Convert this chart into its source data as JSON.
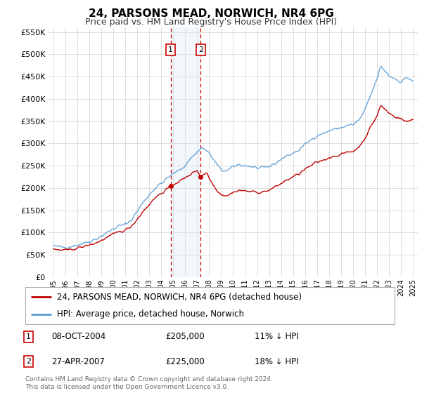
{
  "title": "24, PARSONS MEAD, NORWICH, NR4 6PG",
  "subtitle": "Price paid vs. HM Land Registry's House Price Index (HPI)",
  "legend_line1": "24, PARSONS MEAD, NORWICH, NR4 6PG (detached house)",
  "legend_line2": "HPI: Average price, detached house, Norwich",
  "transaction1_date": "08-OCT-2004",
  "transaction1_price": 205000,
  "transaction1_pct": "11% ↓ HPI",
  "transaction2_date": "27-APR-2007",
  "transaction2_price": 225000,
  "transaction2_pct": "18% ↓ HPI",
  "footer": "Contains HM Land Registry data © Crown copyright and database right 2024.\nThis data is licensed under the Open Government Licence v3.0.",
  "hpi_color": "#5b9bd5",
  "price_color": "#c00000",
  "shade_color": "#dae9f5",
  "ylim_min": 0,
  "ylim_max": 560000,
  "yticks": [
    0,
    50000,
    100000,
    150000,
    200000,
    250000,
    300000,
    350000,
    400000,
    450000,
    500000,
    550000
  ],
  "t1_x": 2004.79,
  "t2_x": 2007.29,
  "t1_y": 205000,
  "t2_y": 225000,
  "xmin": 1994.6,
  "xmax": 2025.4
}
